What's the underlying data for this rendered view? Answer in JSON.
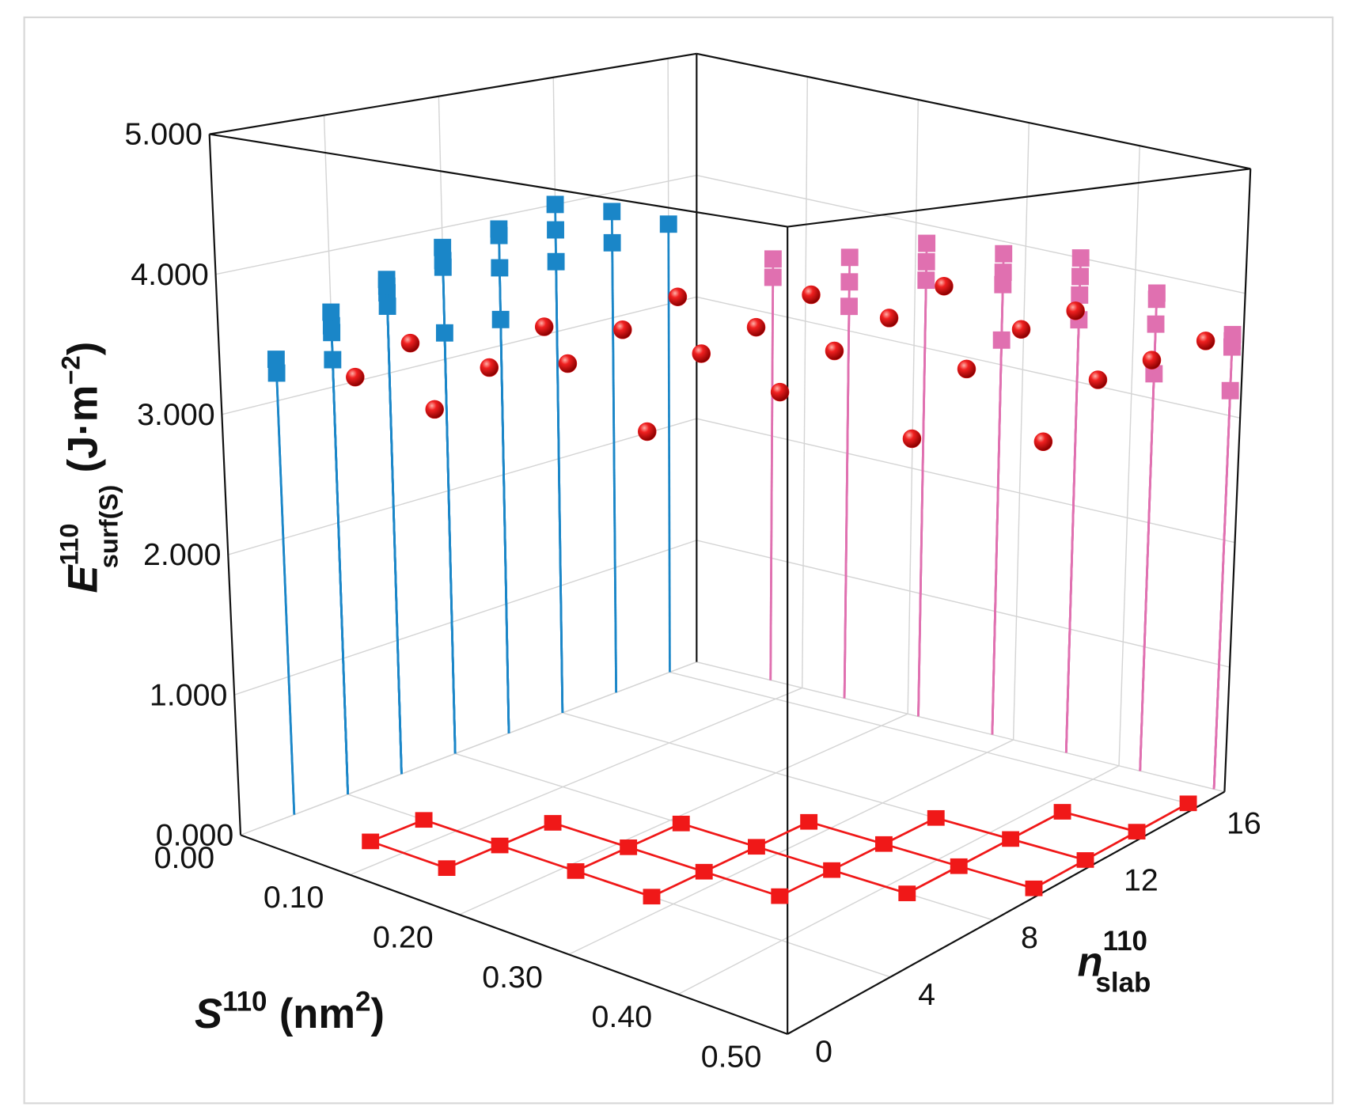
{
  "chart_data": {
    "type": "scatter3d",
    "x_label": {
      "main": "S",
      "sup": "110",
      "unit": "(nm",
      "unit_sup": "2",
      "unit_end": ")"
    },
    "y_label": {
      "main": "n",
      "sup": "110",
      "sub": "slab"
    },
    "z_label": {
      "main": "E",
      "sup": "110",
      "sub": "surf(S)",
      "unit": "(J·m",
      "unit_sup": "−2",
      "unit_end": ")"
    },
    "xlim": [
      0,
      0.5
    ],
    "xticks": [
      {
        "value": 0,
        "label": "0.00"
      },
      {
        "value": 0.1,
        "label": "0.10"
      },
      {
        "value": 0.2,
        "label": "0.20"
      },
      {
        "value": 0.3,
        "label": "0.30"
      },
      {
        "value": 0.4,
        "label": "0.40"
      },
      {
        "value": 0.5,
        "label": "0.50"
      }
    ],
    "ylim": [
      0,
      17
    ],
    "yticks": [
      0,
      4,
      8,
      12,
      16
    ],
    "zlim": [
      0,
      5
    ],
    "zticks": [
      {
        "value": 0,
        "label": "0.000"
      },
      {
        "value": 1,
        "label": "1.000"
      },
      {
        "value": 2,
        "label": "2.000"
      },
      {
        "value": 3,
        "label": "3.000"
      },
      {
        "value": 4,
        "label": "4.000"
      },
      {
        "value": 5,
        "label": "5.000"
      }
    ],
    "grid": true,
    "colors": {
      "point": "#e8161a",
      "floor": "#f01818",
      "wall_s": "#1a86c8",
      "wall_n": "#e070b0"
    },
    "points": {
      "s": [
        0.07,
        0.07,
        0.14,
        0.14,
        0.14,
        0.21,
        0.21,
        0.21,
        0.28,
        0.28,
        0.28,
        0.28,
        0.35,
        0.35,
        0.35,
        0.35,
        0.42,
        0.42,
        0.42,
        0.42,
        0.49,
        0.49,
        0.49,
        0.49
      ],
      "n": [
        2,
        4,
        2,
        4,
        6,
        4,
        6,
        8,
        4,
        6,
        8,
        10,
        6,
        8,
        10,
        12,
        8,
        10,
        12,
        14,
        10,
        12,
        14,
        16
      ],
      "e": [
        3.3,
        3.45,
        3.2,
        3.4,
        3.6,
        3.55,
        3.7,
        3.85,
        3.2,
        3.65,
        3.75,
        3.9,
        3.5,
        3.7,
        3.85,
        4.0,
        3.2,
        3.6,
        3.8,
        3.85,
        3.2,
        3.55,
        3.6,
        3.65
      ]
    }
  }
}
